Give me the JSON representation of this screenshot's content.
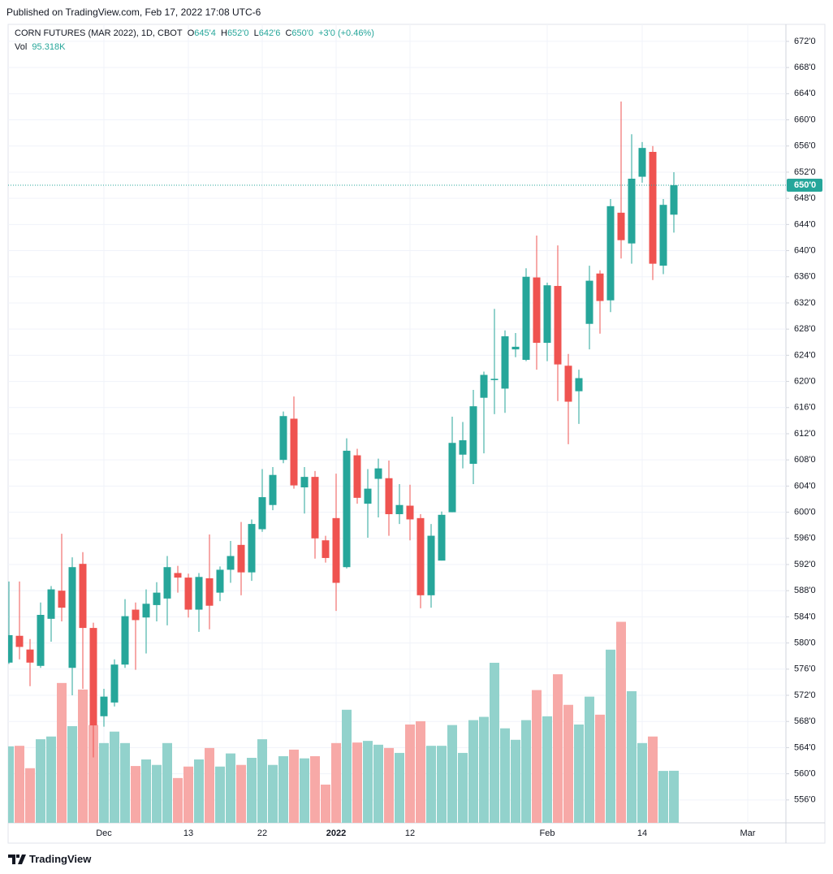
{
  "header": {
    "published": "Published on TradingView.com, Feb 17, 2022 17:08 UTC-6",
    "symbol": "CORN FUTURES (MAR 2022), 1D, CBOT",
    "open_label": "O",
    "open": "645'4",
    "high_label": "H",
    "high": "652'0",
    "low_label": "L",
    "low": "642'6",
    "close_label": "C",
    "close": "650'0",
    "change": "+3'0 (+0.46%)",
    "vol_label": "Vol",
    "vol": "95.318K"
  },
  "footer": {
    "brand": "TradingView"
  },
  "chart_data": {
    "type": "candlestick",
    "up_color": "#26a69a",
    "down_color": "#ef5350",
    "volume_up_color": "#92d2cc",
    "volume_down_color": "#f7a9a7",
    "grid": true,
    "last_price_label": "650'0",
    "categories": [
      null,
      null,
      null,
      null,
      null,
      null,
      null,
      null,
      null,
      "Dec",
      null,
      null,
      null,
      null,
      null,
      null,
      null,
      "13",
      null,
      null,
      null,
      null,
      null,
      null,
      "22",
      null,
      null,
      null,
      null,
      null,
      null,
      "2022",
      null,
      null,
      null,
      null,
      null,
      null,
      "12",
      null,
      null,
      null,
      null,
      null,
      null,
      null,
      null,
      null,
      null,
      null,
      null,
      "Feb",
      null,
      null,
      null,
      null,
      null,
      null,
      null,
      null,
      "14",
      null,
      null,
      null,
      null,
      null,
      null,
      null,
      null,
      null,
      "Mar",
      null,
      null,
      null
    ],
    "open": [
      577,
      581.1,
      579,
      576.5,
      583.7,
      588,
      576.2,
      592.1,
      582.3,
      568.8,
      570.9,
      576.7,
      585.1,
      583.9,
      585.8,
      586.8,
      590.7,
      590,
      585.1,
      589.9,
      587.7,
      591.2,
      595,
      590.8,
      597.4,
      601.1,
      608,
      614.3,
      603.8,
      605.4,
      595.7,
      599.1,
      591.6,
      608.7,
      601.3,
      605.1,
      605.2,
      599.7,
      601,
      599.1,
      587.3,
      592.6,
      600,
      608.8,
      607.4,
      617.5,
      620.2,
      618.9,
      624.9,
      623.3,
      635.9,
      625.9,
      634.6,
      622.4,
      618.5,
      628.8,
      636.5,
      632.4,
      645.8,
      641.1,
      651.3,
      655.1,
      637.7,
      645.5,
      null,
      null,
      null,
      null,
      null,
      null,
      null,
      null,
      null,
      null
    ],
    "high": [
      589.4,
      589.4,
      580.6,
      586.2,
      588.7,
      596.7,
      593.1,
      593.9,
      583.1,
      573,
      577.5,
      586.7,
      586.2,
      588.2,
      589.3,
      593.3,
      591.8,
      590.6,
      590.7,
      596.6,
      591.7,
      595.6,
      598.5,
      598.9,
      606.6,
      606.9,
      615.4,
      617.7,
      606.9,
      606.3,
      596.4,
      605.9,
      611.3,
      609.7,
      606.6,
      608.2,
      607.9,
      604.3,
      604.2,
      599.7,
      598.2,
      600.1,
      614.6,
      613.8,
      618.7,
      621.5,
      631.1,
      627.8,
      627.4,
      637.3,
      642.3,
      635.1,
      640.8,
      624.2,
      621.8,
      637.7,
      637,
      647.9,
      662.8,
      657.8,
      656.6,
      656,
      647.9,
      652,
      null,
      null,
      null,
      null,
      null,
      null,
      null,
      null,
      null,
      null
    ],
    "low": [
      576.8,
      577.5,
      573.4,
      576.2,
      580.2,
      583.3,
      572,
      573,
      562.5,
      567.2,
      570.3,
      576.2,
      575.9,
      578.4,
      583.3,
      582.7,
      587.7,
      583.9,
      581.7,
      582.1,
      586.4,
      589.2,
      587.3,
      589.5,
      597,
      600.3,
      607.5,
      603.6,
      599.8,
      592.9,
      592.3,
      584.9,
      591.4,
      601.3,
      596.1,
      599.2,
      596.4,
      598.2,
      595.7,
      585.3,
      585.4,
      592.6,
      600,
      606.7,
      604.3,
      609,
      615,
      615.2,
      623.7,
      623.1,
      621.8,
      623.1,
      617,
      610.4,
      613.5,
      624.9,
      627.3,
      630.6,
      638.8,
      638,
      650.4,
      635.5,
      636.4,
      642.75,
      null,
      null,
      null,
      null,
      null,
      null,
      null,
      null,
      null,
      null
    ],
    "close": [
      581.2,
      579.4,
      577,
      584.3,
      588.2,
      585.4,
      591.6,
      582.3,
      567.4,
      571.8,
      576.7,
      584.1,
      583.5,
      586,
      587.7,
      591.6,
      590,
      585.1,
      590.1,
      585.7,
      591.2,
      593.3,
      590.8,
      598.2,
      602.3,
      605.7,
      614.7,
      604.1,
      605.4,
      596,
      593,
      589.2,
      609.4,
      602.2,
      603.6,
      606.7,
      599.7,
      601.1,
      598.9,
      587.3,
      596.4,
      599.6,
      610.6,
      611,
      616.2,
      621,
      620.4,
      626.9,
      625.3,
      636,
      625.9,
      634.7,
      622.6,
      616.9,
      620.5,
      635.4,
      632.3,
      646.8,
      641.6,
      651,
      655.7,
      638,
      647,
      650,
      null,
      null,
      null,
      null,
      null,
      null,
      null,
      null,
      null,
      null
    ],
    "volume": [
      140,
      141,
      100,
      153,
      158,
      256,
      177,
      244,
      179,
      146,
      167,
      146,
      104,
      116,
      106,
      146,
      82,
      103,
      116,
      137,
      103,
      127,
      106,
      119,
      153,
      106,
      122,
      134,
      118,
      122,
      70,
      146,
      207,
      147,
      150,
      143,
      137,
      128,
      180,
      186,
      141,
      141,
      179,
      128,
      188,
      194,
      293,
      173,
      152,
      188,
      243,
      195,
      272,
      216,
      180,
      231,
      198,
      317,
      368,
      241,
      146,
      158,
      95,
      95.318,
      null,
      null,
      null,
      null,
      null,
      null,
      null,
      null,
      null,
      null
    ],
    "ylim": [
      552.5,
      674.6
    ],
    "volume_lim": [
      0,
      400
    ],
    "yticks": [
      {
        "value": 556,
        "label": "556'0"
      },
      {
        "value": 560,
        "label": "560'0"
      },
      {
        "value": 564,
        "label": "564'0"
      },
      {
        "value": 568,
        "label": "568'0"
      },
      {
        "value": 572,
        "label": "572'0"
      },
      {
        "value": 576,
        "label": "576'0"
      },
      {
        "value": 580,
        "label": "580'0"
      },
      {
        "value": 584,
        "label": "584'0"
      },
      {
        "value": 588,
        "label": "588'0"
      },
      {
        "value": 592,
        "label": "592'0"
      },
      {
        "value": 596,
        "label": "596'0"
      },
      {
        "value": 600,
        "label": "600'0"
      },
      {
        "value": 604,
        "label": "604'0"
      },
      {
        "value": 608,
        "label": "608'0"
      },
      {
        "value": 612,
        "label": "612'0"
      },
      {
        "value": 616,
        "label": "616'0"
      },
      {
        "value": 620,
        "label": "620'0"
      },
      {
        "value": 624,
        "label": "624'0"
      },
      {
        "value": 628,
        "label": "628'0"
      },
      {
        "value": 632,
        "label": "632'0"
      },
      {
        "value": 636,
        "label": "636'0"
      },
      {
        "value": 640,
        "label": "640'0"
      },
      {
        "value": 644,
        "label": "644'0"
      },
      {
        "value": 648,
        "label": "648'0"
      },
      {
        "value": 652,
        "label": "652'0"
      },
      {
        "value": 656,
        "label": "656'0"
      },
      {
        "value": 660,
        "label": "660'0"
      },
      {
        "value": 664,
        "label": "664'0"
      },
      {
        "value": 668,
        "label": "668'0"
      },
      {
        "value": 672,
        "label": "672'0"
      }
    ]
  }
}
